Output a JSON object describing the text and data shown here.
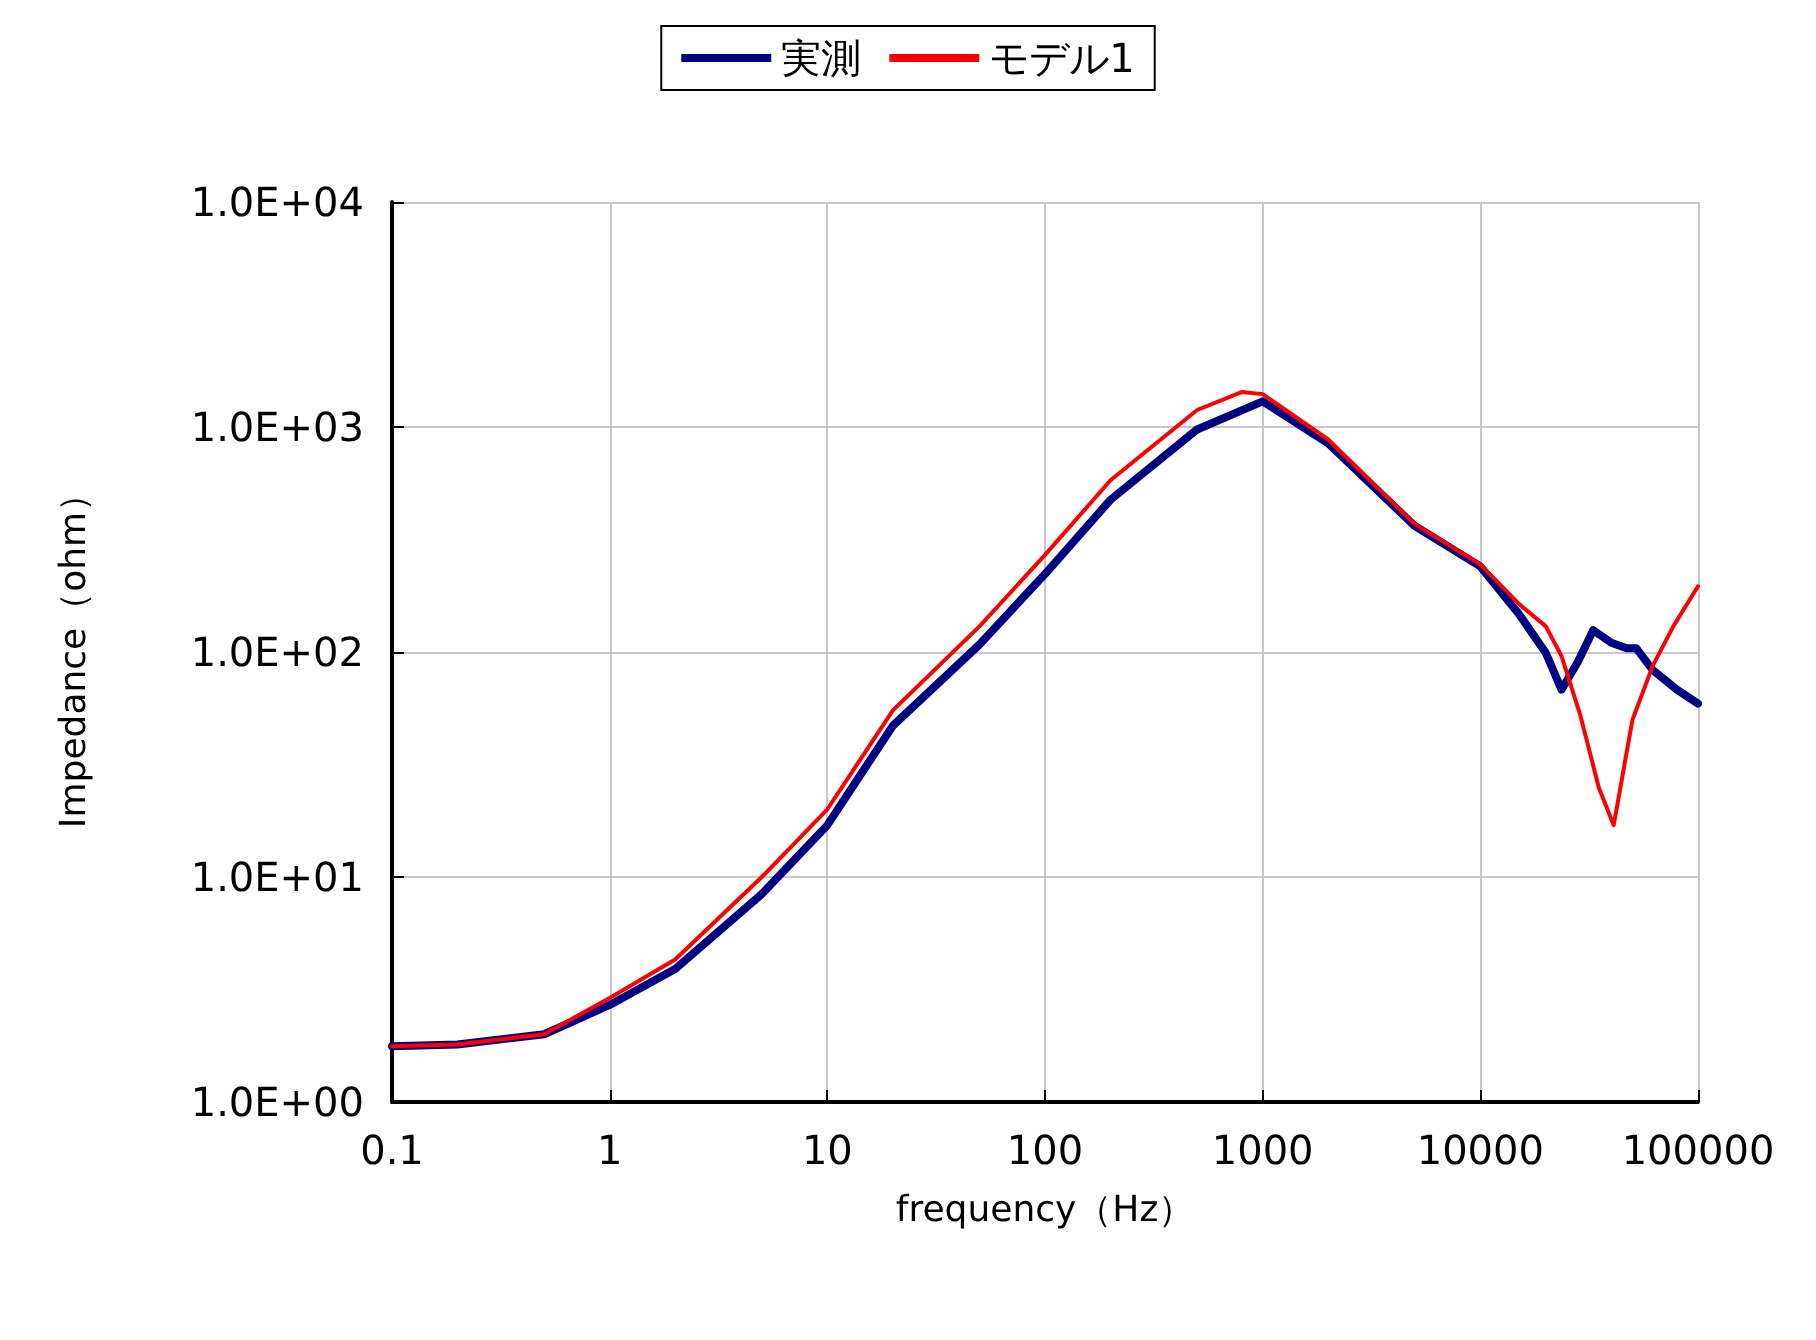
{
  "chart_data": {
    "type": "line",
    "xlabel": "frequency（Hz）",
    "ylabel": "Impedance（ohm）",
    "log": "xy",
    "grid": true,
    "legend": "top",
    "marker": "none",
    "line_style": "solid",
    "xlim": [
      0.1,
      100000
    ],
    "xticks": [
      0.1,
      1,
      10,
      100,
      1000,
      10000,
      100000
    ],
    "ylim": [
      1,
      10000
    ],
    "yticks": [
      {
        "value": 1,
        "label": "1.0E+00"
      },
      {
        "value": 10,
        "label": "1.0E+01"
      },
      {
        "value": 100,
        "label": "1.0E+02"
      },
      {
        "value": 1000,
        "label": "1.0E+03"
      },
      {
        "value": 10000,
        "label": "1.0E+04"
      }
    ],
    "series": [
      {
        "name": "実測",
        "color": "#000080",
        "x": [
          0.1,
          0.2,
          0.5,
          1,
          2,
          5,
          10,
          20,
          50,
          100,
          200,
          500,
          1000,
          2000,
          5000,
          10000,
          15000,
          20000,
          23600,
          28000,
          33000,
          40000,
          47000,
          52000,
          62000,
          80000,
          100000
        ],
        "values": [
          1.77,
          1.8,
          2.0,
          2.7,
          3.9,
          8.4,
          17,
          47,
          108,
          222,
          475,
          975,
          1300,
          845,
          363,
          240,
          148,
          99,
          68,
          90,
          125,
          110,
          104,
          104,
          83,
          68,
          59
        ]
      },
      {
        "name": "モデル1",
        "color": "#ff0000",
        "x": [
          0.1,
          0.2,
          0.5,
          1,
          2,
          5,
          10,
          20,
          50,
          100,
          200,
          500,
          800,
          1000,
          2000,
          5000,
          10000,
          15000,
          20000,
          23600,
          28700,
          35000,
          41000,
          50000,
          62000,
          77000,
          100000
        ],
        "values": [
          1.77,
          1.8,
          2.0,
          2.9,
          4.3,
          10,
          20,
          55,
          130,
          270,
          580,
          1190,
          1430,
          1400,
          880,
          370,
          245,
          164,
          130,
          96,
          53,
          25,
          17,
          50,
          87,
          130,
          196
        ]
      }
    ]
  }
}
